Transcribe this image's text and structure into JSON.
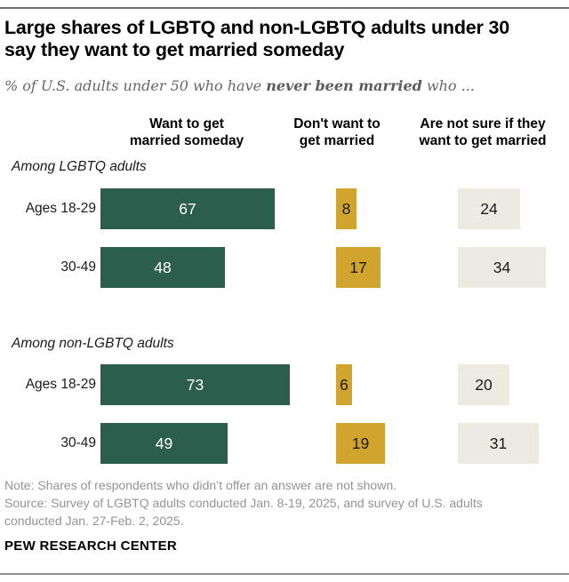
{
  "header": {
    "title_line1": "Large shares of LGBTQ and non-LGBTQ adults under 30",
    "title_line2": "say they want to get married someday",
    "subtitle_prefix": "% of U.S. adults under 50 who have ",
    "subtitle_bold": "never been married",
    "subtitle_suffix": " who ..."
  },
  "chart_data": {
    "type": "bar",
    "title": "Large shares of LGBTQ and non-LGBTQ adults under 30 say they want to get married someday",
    "subtitle": "% of U.S. adults under 50 who have never been married who ...",
    "value_unit": "%",
    "xmax": 100,
    "legend_position": "column-headers-top",
    "grid": false,
    "columns": [
      {
        "label": "Want to get married someday",
        "line1": "Want to get",
        "line2": "married someday",
        "color": "#2b5e4d"
      },
      {
        "label": "Don't want to get married",
        "line1": "Don't want to",
        "line2": "get married",
        "color": "#d1a52d"
      },
      {
        "label": "Are not sure if they want to get married",
        "line1": "Are not sure if they",
        "line2": "want to get married",
        "color": "#edeae1"
      }
    ],
    "groups": [
      {
        "label": "Among LGBTQ adults",
        "rows": [
          {
            "label": "Ages 18-29",
            "values": [
              67,
              8,
              24
            ]
          },
          {
            "label": "30-49",
            "values": [
              48,
              17,
              34
            ]
          }
        ]
      },
      {
        "label": "Among non-LGBTQ adults",
        "rows": [
          {
            "label": "Ages 18-29",
            "values": [
              73,
              6,
              20
            ]
          },
          {
            "label": "30-49",
            "values": [
              49,
              19,
              31
            ]
          }
        ]
      }
    ]
  },
  "footer": {
    "note": "Note: Shares of respondents who didn’t offer an answer are not shown.",
    "source_line1": "Source: Survey of LGBTQ adults conducted Jan. 8-19, 2025, and survey of U.S. adults",
    "source_line2": "conducted Jan. 27-Feb. 2, 2025.",
    "brand": "PEW RESEARCH CENTER"
  }
}
